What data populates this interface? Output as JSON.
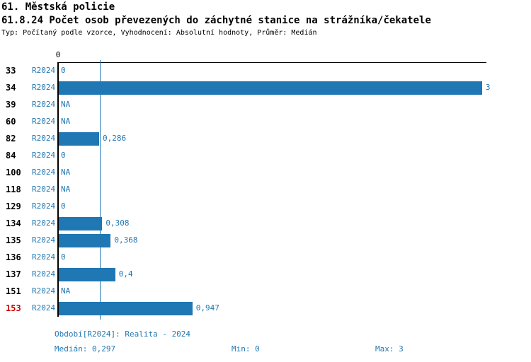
{
  "header": {
    "title": "61. Městská policie",
    "subtitle": "61.8.24 Počet osob převezených do záchytné stanice na strážníka/čekatele",
    "meta": "Typ: Počítaný podle vzorce, Vyhodnocení: Absolutní hodnoty, Průměr: Medián"
  },
  "chart_data": {
    "type": "bar",
    "orientation": "horizontal",
    "title": "61.8.24 Počet osob převezených do záchytné stanice na strážníka/čekatele",
    "period_label": "R2024",
    "x_axis": {
      "range": [
        0,
        3.05
      ],
      "ticks": [
        0
      ],
      "tick_labels": [
        "0"
      ]
    },
    "median_line": {
      "value": 0.297,
      "label": "0,297"
    },
    "categories": [
      "33",
      "34",
      "39",
      "60",
      "82",
      "84",
      "100",
      "118",
      "129",
      "134",
      "135",
      "136",
      "137",
      "151",
      "153"
    ],
    "rows": [
      {
        "id": "33",
        "value": 0,
        "display": "0",
        "highlight": false
      },
      {
        "id": "34",
        "value": 3,
        "display": "3",
        "highlight": false
      },
      {
        "id": "39",
        "value": null,
        "display": "NA",
        "highlight": false
      },
      {
        "id": "60",
        "value": null,
        "display": "NA",
        "highlight": false
      },
      {
        "id": "82",
        "value": 0.286,
        "display": "0,286",
        "highlight": false
      },
      {
        "id": "84",
        "value": 0,
        "display": "0",
        "highlight": false
      },
      {
        "id": "100",
        "value": null,
        "display": "NA",
        "highlight": false
      },
      {
        "id": "118",
        "value": null,
        "display": "NA",
        "highlight": false
      },
      {
        "id": "129",
        "value": 0,
        "display": "0",
        "highlight": false
      },
      {
        "id": "134",
        "value": 0.308,
        "display": "0,308",
        "highlight": false
      },
      {
        "id": "135",
        "value": 0.368,
        "display": "0,368",
        "highlight": false
      },
      {
        "id": "136",
        "value": 0,
        "display": "0",
        "highlight": false
      },
      {
        "id": "137",
        "value": 0.4,
        "display": "0,4",
        "highlight": false
      },
      {
        "id": "151",
        "value": null,
        "display": "NA",
        "highlight": false
      },
      {
        "id": "153",
        "value": 0.947,
        "display": "0,947",
        "highlight": true
      }
    ],
    "colors": {
      "bar": "#1f77b4",
      "text_blue": "#1f77b4",
      "highlight_red": "#cc0000",
      "axis_black": "#000000"
    },
    "legend_position": "bottom",
    "grid": false
  },
  "footer": {
    "period": "Období[R2024]: Realita - 2024",
    "median": "Medián: 0,297",
    "min": "Min: 0",
    "max": "Max: 3"
  }
}
